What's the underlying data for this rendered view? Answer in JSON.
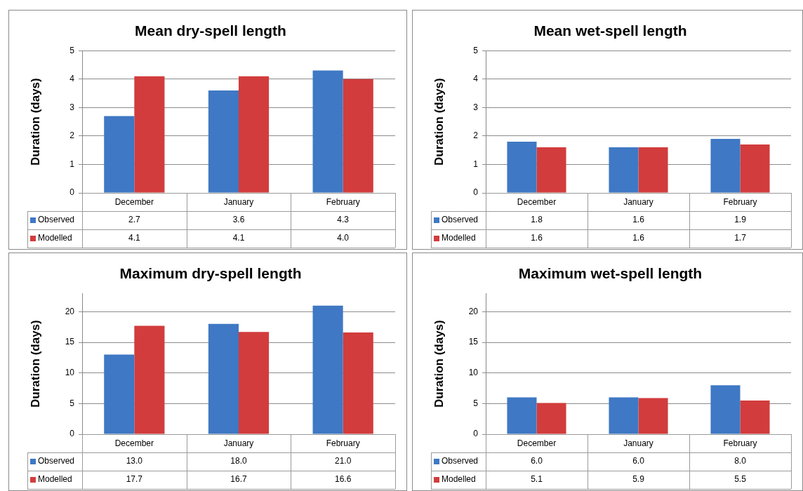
{
  "chart_data": [
    {
      "type": "bar",
      "title": "Mean dry-spell length",
      "ylabel": "Duration (days)",
      "categories": [
        "December",
        "January",
        "February"
      ],
      "series": [
        {
          "name": "Observed",
          "color": "#3f78c4",
          "values": [
            2.7,
            3.6,
            4.3
          ],
          "value_labels": [
            "2.7",
            "3.6",
            "4.3"
          ]
        },
        {
          "name": "Modelled",
          "color": "#d23c3c",
          "values": [
            4.1,
            4.1,
            4.0
          ],
          "value_labels": [
            "4.1",
            "4.1",
            "4.0"
          ]
        }
      ],
      "ylim": [
        0,
        5
      ],
      "yticks": [
        0,
        1,
        2,
        3,
        4,
        5
      ],
      "grid": "y",
      "legend": "bottom"
    },
    {
      "type": "bar",
      "title": "Mean wet-spell length",
      "ylabel": "Duration (days)",
      "categories": [
        "December",
        "January",
        "February"
      ],
      "series": [
        {
          "name": "Observed",
          "color": "#3f78c4",
          "values": [
            1.8,
            1.6,
            1.9
          ],
          "value_labels": [
            "1.8",
            "1.6",
            "1.9"
          ]
        },
        {
          "name": "Modelled",
          "color": "#d23c3c",
          "values": [
            1.6,
            1.6,
            1.7
          ],
          "value_labels": [
            "1.6",
            "1.6",
            "1.7"
          ]
        }
      ],
      "ylim": [
        0,
        5
      ],
      "yticks": [
        0,
        1,
        2,
        3,
        4,
        5
      ],
      "grid": "y",
      "legend": "bottom"
    },
    {
      "type": "bar",
      "title": "Maximum dry-spell length",
      "ylabel": "Duration (days)",
      "categories": [
        "December",
        "January",
        "February"
      ],
      "series": [
        {
          "name": "Observed",
          "color": "#3f78c4",
          "values": [
            13.0,
            18.0,
            21.0
          ],
          "value_labels": [
            "13.0",
            "18.0",
            "21.0"
          ]
        },
        {
          "name": "Modelled",
          "color": "#d23c3c",
          "values": [
            17.7,
            16.7,
            16.6
          ],
          "value_labels": [
            "17.7",
            "16.7",
            "16.6"
          ]
        }
      ],
      "ylim": [
        0,
        23
      ],
      "yticks": [
        0,
        5,
        10,
        15,
        20
      ],
      "grid": "y",
      "legend": "bottom"
    },
    {
      "type": "bar",
      "title": "Maximum wet-spell length",
      "ylabel": "Duration (days)",
      "categories": [
        "December",
        "January",
        "February"
      ],
      "series": [
        {
          "name": "Observed",
          "color": "#3f78c4",
          "values": [
            6.0,
            6.0,
            8.0
          ],
          "value_labels": [
            "6.0",
            "6.0",
            "8.0"
          ]
        },
        {
          "name": "Modelled",
          "color": "#d23c3c",
          "values": [
            5.1,
            5.9,
            5.5
          ],
          "value_labels": [
            "5.1",
            "5.9",
            "5.5"
          ]
        }
      ],
      "ylim": [
        0,
        23
      ],
      "yticks": [
        0,
        5,
        10,
        15,
        20
      ],
      "grid": "y",
      "legend": "bottom"
    }
  ]
}
